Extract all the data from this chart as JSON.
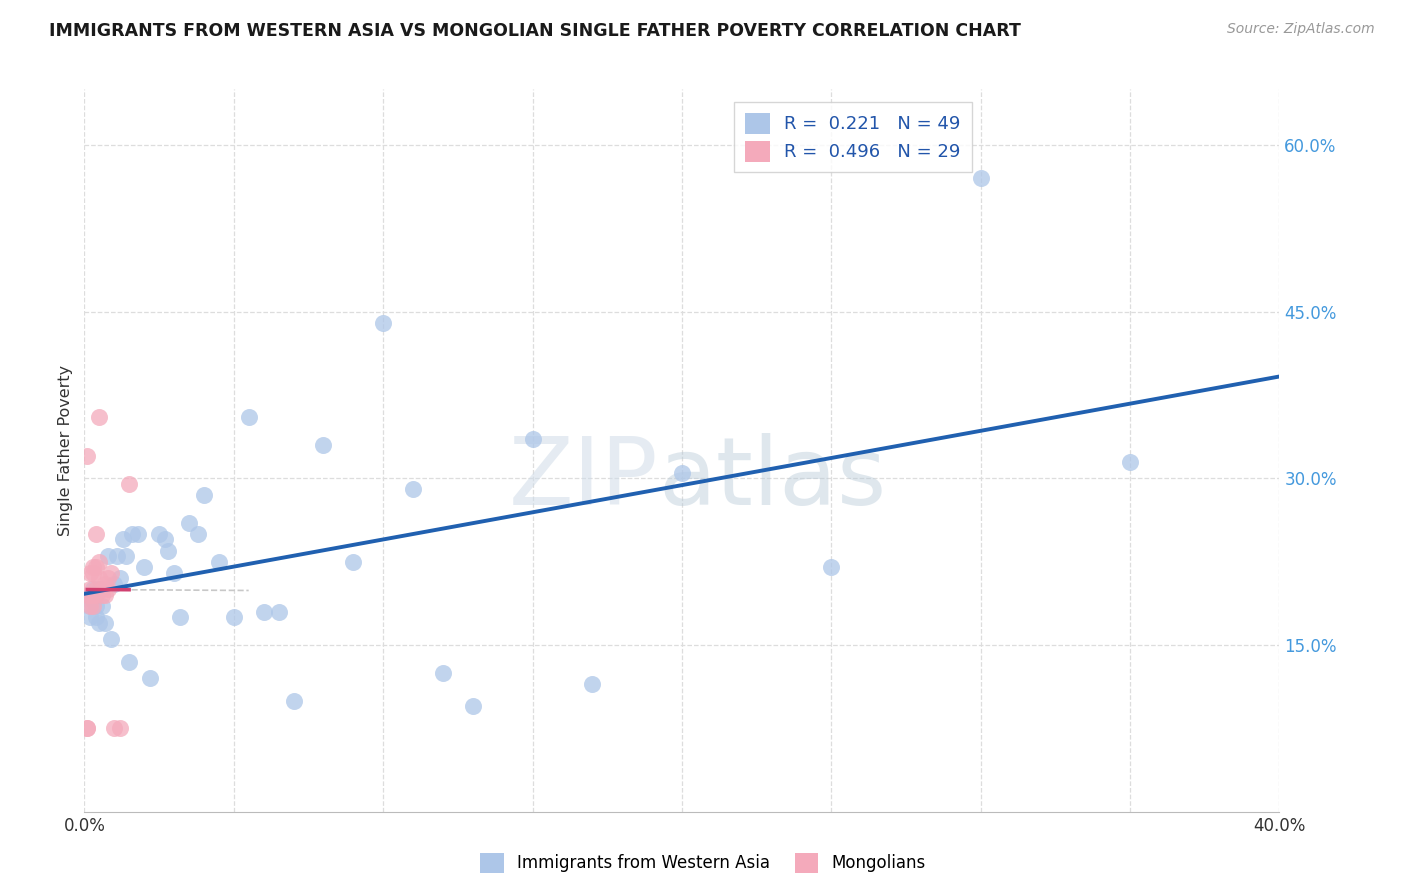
{
  "title": "IMMIGRANTS FROM WESTERN ASIA VS MONGOLIAN SINGLE FATHER POVERTY CORRELATION CHART",
  "source": "Source: ZipAtlas.com",
  "ylabel": "Single Father Poverty",
  "legend_label_blue": "Immigrants from Western Asia",
  "legend_label_pink": "Mongolians",
  "r_blue": 0.221,
  "n_blue": 49,
  "r_pink": 0.496,
  "n_pink": 29,
  "color_blue": "#adc6e8",
  "color_pink": "#f4aabb",
  "color_blue_line": "#2060b0",
  "color_pink_line": "#d04070",
  "color_dashed_line": "#c8c8c8",
  "xlim": [
    0.0,
    0.4
  ],
  "ylim": [
    0.0,
    0.65
  ],
  "ytick_vals": [
    0.15,
    0.3,
    0.45,
    0.6
  ],
  "ytick_labels": [
    "15.0%",
    "30.0%",
    "45.0%",
    "60.0%"
  ],
  "xtick_positions": [
    0.0,
    0.05,
    0.1,
    0.15,
    0.2,
    0.25,
    0.3,
    0.35,
    0.4
  ],
  "xtick_labels": [
    "0.0%",
    "",
    "",
    "",
    "",
    "",
    "",
    "",
    "40.0%"
  ],
  "blue_x": [
    0.001,
    0.002,
    0.002,
    0.003,
    0.003,
    0.004,
    0.004,
    0.005,
    0.005,
    0.006,
    0.007,
    0.008,
    0.009,
    0.01,
    0.011,
    0.012,
    0.013,
    0.014,
    0.015,
    0.016,
    0.018,
    0.02,
    0.022,
    0.025,
    0.027,
    0.028,
    0.03,
    0.032,
    0.035,
    0.038,
    0.04,
    0.045,
    0.05,
    0.055,
    0.06,
    0.065,
    0.07,
    0.08,
    0.09,
    0.1,
    0.11,
    0.12,
    0.13,
    0.15,
    0.17,
    0.2,
    0.25,
    0.3,
    0.35
  ],
  "blue_y": [
    0.195,
    0.185,
    0.175,
    0.2,
    0.19,
    0.185,
    0.175,
    0.2,
    0.17,
    0.185,
    0.17,
    0.23,
    0.155,
    0.205,
    0.23,
    0.21,
    0.245,
    0.23,
    0.135,
    0.25,
    0.25,
    0.22,
    0.12,
    0.25,
    0.245,
    0.235,
    0.215,
    0.175,
    0.26,
    0.25,
    0.285,
    0.225,
    0.175,
    0.355,
    0.18,
    0.18,
    0.1,
    0.33,
    0.225,
    0.44,
    0.29,
    0.125,
    0.095,
    0.335,
    0.115,
    0.305,
    0.22,
    0.57,
    0.315
  ],
  "pink_x": [
    0.001,
    0.001,
    0.001,
    0.001,
    0.002,
    0.002,
    0.002,
    0.002,
    0.003,
    0.003,
    0.003,
    0.003,
    0.004,
    0.004,
    0.004,
    0.004,
    0.005,
    0.005,
    0.005,
    0.006,
    0.006,
    0.007,
    0.007,
    0.008,
    0.008,
    0.009,
    0.01,
    0.012,
    0.015
  ],
  "pink_y": [
    0.075,
    0.075,
    0.195,
    0.32,
    0.185,
    0.195,
    0.2,
    0.215,
    0.195,
    0.215,
    0.22,
    0.185,
    0.22,
    0.2,
    0.25,
    0.195,
    0.21,
    0.225,
    0.355,
    0.195,
    0.2,
    0.195,
    0.205,
    0.21,
    0.2,
    0.215,
    0.075,
    0.075,
    0.295
  ],
  "watermark_zip": "ZIP",
  "watermark_atlas": "atlas",
  "background_color": "#ffffff",
  "grid_color": "#dddddd",
  "title_color": "#1a1a1a",
  "source_color": "#999999",
  "tick_color_y": "#4499dd",
  "tick_color_x": "#333333",
  "ylabel_color": "#333333"
}
